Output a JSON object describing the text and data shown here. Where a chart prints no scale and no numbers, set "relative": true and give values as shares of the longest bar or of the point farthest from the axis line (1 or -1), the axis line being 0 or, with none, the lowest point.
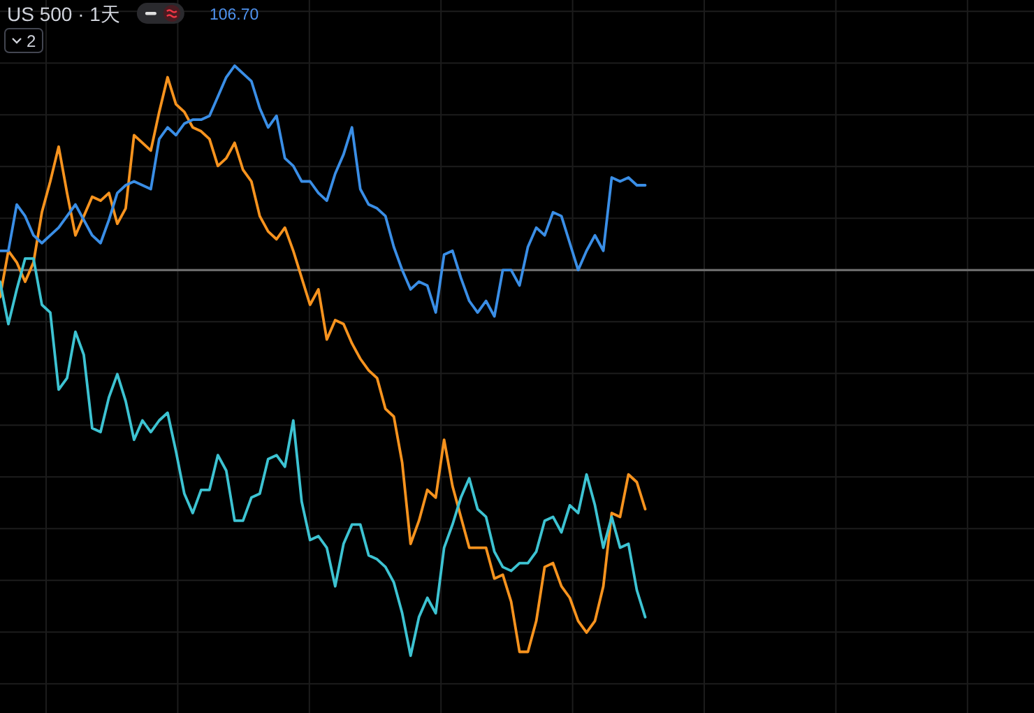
{
  "chart_data": {
    "type": "line",
    "title": "US 500 · 1天",
    "annotations": [
      "106.70",
      "2"
    ],
    "relative": true,
    "grid": true,
    "categories": [
      null,
      null,
      null,
      null,
      null,
      null,
      null,
      null,
      null,
      null,
      null,
      null,
      null,
      null,
      null,
      null,
      null,
      null,
      null,
      null,
      null,
      null,
      null,
      null,
      null,
      null,
      null,
      null,
      null,
      null,
      null,
      null,
      null,
      null,
      null,
      null,
      null,
      null,
      null,
      null,
      null,
      null,
      null,
      null,
      null,
      null,
      null,
      null,
      null,
      null,
      null,
      null,
      null,
      null,
      null,
      null,
      null,
      null,
      null,
      null,
      null,
      null,
      null,
      null,
      null,
      null,
      null,
      null,
      null,
      null,
      null,
      null,
      null,
      null,
      null,
      null,
      null,
      null
    ],
    "ref_lines": [
      {
        "axis": "y",
        "value": 0,
        "color": "#6b6b6b"
      }
    ],
    "series": [
      {
        "color": "#f7931e",
        "values": [
          -0.07,
          0.05,
          0.02,
          -0.03,
          0.02,
          0.15,
          0.23,
          0.32,
          0.2,
          0.09,
          0.14,
          0.19,
          0.18,
          0.2,
          0.12,
          0.16,
          0.35,
          0.33,
          0.31,
          0.41,
          0.5,
          0.43,
          0.41,
          0.37,
          0.36,
          0.34,
          0.27,
          0.29,
          0.33,
          0.26,
          0.23,
          0.14,
          0.1,
          0.08,
          0.11,
          0.05,
          -0.02,
          -0.09,
          -0.05,
          -0.18,
          -0.13,
          -0.14,
          -0.19,
          -0.23,
          -0.26,
          -0.28,
          -0.36,
          -0.38,
          -0.5,
          -0.71,
          -0.65,
          -0.57,
          -0.59,
          -0.44,
          -0.56,
          -0.64,
          -0.72,
          -0.72,
          -0.72,
          -0.8,
          -0.79,
          -0.86,
          -0.99,
          -0.99,
          -0.91,
          -0.77,
          -0.76,
          -0.82,
          -0.85,
          -0.91,
          -0.94,
          -0.91,
          -0.82,
          -0.63,
          -0.64,
          -0.53,
          -0.55,
          -0.62
        ]
      },
      {
        "color": "#3a8ee6",
        "values": [
          0.05,
          0.05,
          0.17,
          0.14,
          0.09,
          0.07,
          0.09,
          0.11,
          0.14,
          0.17,
          0.13,
          0.09,
          0.07,
          0.13,
          0.2,
          0.22,
          0.23,
          0.22,
          0.21,
          0.34,
          0.37,
          0.35,
          0.38,
          0.39,
          0.39,
          0.4,
          0.45,
          0.5,
          0.53,
          0.51,
          0.49,
          0.42,
          0.37,
          0.4,
          0.29,
          0.27,
          0.23,
          0.23,
          0.2,
          0.18,
          0.25,
          0.3,
          0.37,
          0.21,
          0.17,
          0.16,
          0.14,
          0.06,
          0.0,
          -0.05,
          -0.03,
          -0.04,
          -0.11,
          0.04,
          0.05,
          -0.02,
          -0.08,
          -0.11,
          -0.08,
          -0.12,
          0.0,
          0.0,
          -0.04,
          0.06,
          0.11,
          0.09,
          0.15,
          0.14,
          0.07,
          0.0,
          0.05,
          0.09,
          0.05,
          0.24,
          0.23,
          0.24,
          0.22,
          0.22
        ]
      },
      {
        "color": "#3dc3d2",
        "values": [
          -0.03,
          -0.14,
          -0.05,
          0.03,
          0.03,
          -0.09,
          -0.11,
          -0.31,
          -0.28,
          -0.16,
          -0.22,
          -0.41,
          -0.42,
          -0.33,
          -0.27,
          -0.34,
          -0.44,
          -0.39,
          -0.42,
          -0.39,
          -0.37,
          -0.47,
          -0.58,
          -0.63,
          -0.57,
          -0.57,
          -0.48,
          -0.52,
          -0.65,
          -0.65,
          -0.59,
          -0.58,
          -0.49,
          -0.48,
          -0.51,
          -0.39,
          -0.6,
          -0.7,
          -0.69,
          -0.72,
          -0.82,
          -0.71,
          -0.66,
          -0.66,
          -0.74,
          -0.75,
          -0.77,
          -0.81,
          -0.89,
          -1.0,
          -0.9,
          -0.85,
          -0.89,
          -0.72,
          -0.66,
          -0.59,
          -0.54,
          -0.62,
          -0.64,
          -0.73,
          -0.77,
          -0.78,
          -0.76,
          -0.76,
          -0.73,
          -0.65,
          -0.64,
          -0.68,
          -0.61,
          -0.63,
          -0.53,
          -0.61,
          -0.72,
          -0.64,
          -0.72,
          -0.71,
          -0.83,
          -0.9
        ]
      }
    ]
  }
}
